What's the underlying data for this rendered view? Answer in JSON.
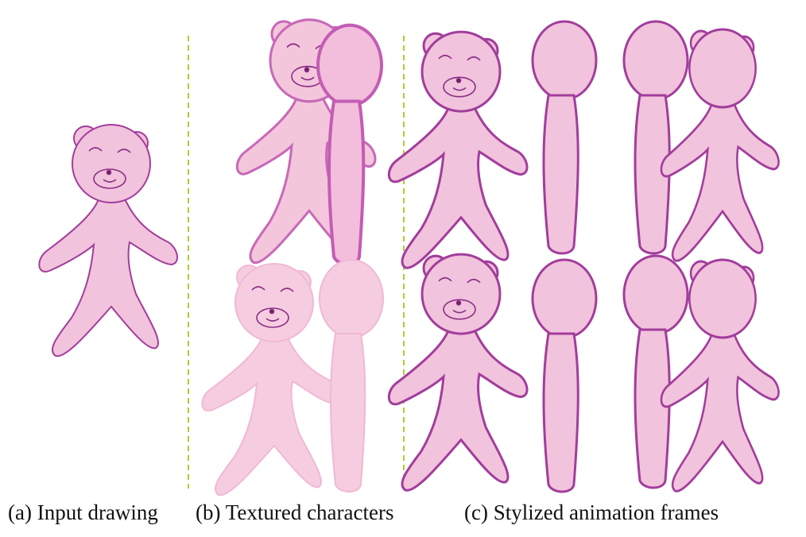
{
  "captions": {
    "a": "(a) Input drawing",
    "b": "(b) Textured characters",
    "c": "(c) Stylized animation frames"
  },
  "colors": {
    "bear_fill": "#f2c3dc",
    "bear_outline": "#a23d9c",
    "textured_fill": "#f4c6dc",
    "separator": "#b5c832"
  }
}
